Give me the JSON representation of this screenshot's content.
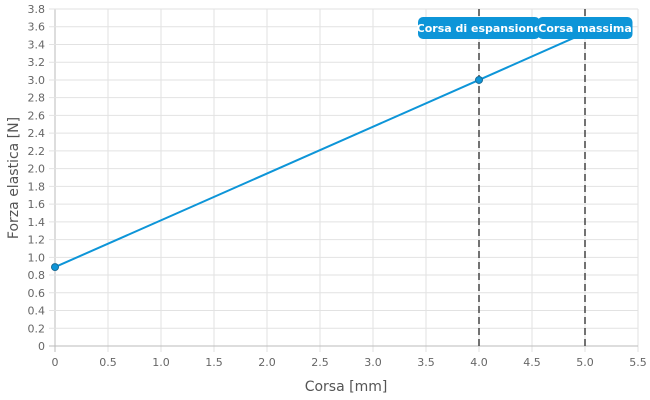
{
  "chart_data": {
    "type": "line",
    "title": "",
    "xlabel": "Corsa [mm]",
    "ylabel": "Forza elastica [N]",
    "xlim": [
      0,
      5.5
    ],
    "ylim": [
      0,
      3.8
    ],
    "x_ticks": [
      "0",
      "0.5",
      "1.0",
      "1.5",
      "2.0",
      "2.5",
      "3.0",
      "3.5",
      "4.0",
      "4.5",
      "5.0",
      "5.5"
    ],
    "y_ticks": [
      "0",
      "0.2",
      "0.4",
      "0.6",
      "0.8",
      "1.0",
      "1.2",
      "1.4",
      "1.6",
      "1.8",
      "2.0",
      "2.2",
      "2.4",
      "2.6",
      "2.8",
      "3.0",
      "3.2",
      "3.4",
      "3.6",
      "3.8"
    ],
    "grid": true,
    "series": [
      {
        "name": "Forza elastica",
        "color": "#0d95d8",
        "x": [
          0,
          4,
          5
        ],
        "y": [
          0.89,
          3.0,
          3.53
        ],
        "markers": [
          0,
          4
        ]
      }
    ],
    "annotations": [
      {
        "x": 4,
        "label": "Corsa di espansione",
        "color": "#0d95d8"
      },
      {
        "x": 5,
        "label": "Corsa massima",
        "color": "#0d95d8"
      }
    ]
  }
}
